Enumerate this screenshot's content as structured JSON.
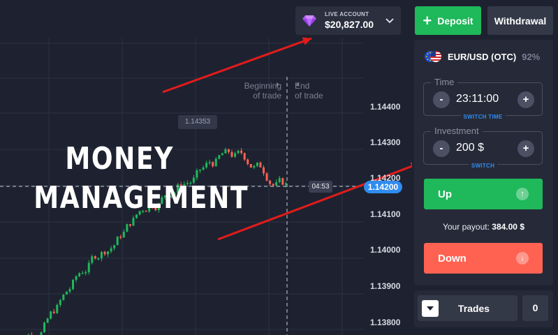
{
  "chart": {
    "price_ticks": [
      "1.14400",
      "1.14300",
      "1.14200",
      "1.14100",
      "1.14000",
      "1.13900",
      "1.13800"
    ],
    "current_price": "1.14200",
    "timer": "04:53",
    "high_label": "1.14353",
    "beginning_label_1": "Beginning",
    "beginning_label_2": "of trade",
    "end_label_1": "End",
    "end_label_2": "of trade",
    "overlay_line1": "MONEY",
    "overlay_line2": "MANAGEMENT",
    "bull_color": "#1fb85b",
    "bear_color": "#ff6251",
    "arrow_color": "#e41b1b"
  },
  "account": {
    "label": "LIVE ACCOUNT",
    "balance": "$20,827.00",
    "icon": "diamond-icon"
  },
  "header": {
    "deposit_label": "Deposit",
    "withdrawal_label": "Withdrawal"
  },
  "panel": {
    "pair": "EUR/USD (OTC)",
    "payout_pct": "92%",
    "time_legend": "Time",
    "time_value": "23:11:00",
    "switch_time": "SWITCH TIME",
    "investment_legend": "Investment",
    "investment_value": "200 $",
    "switch": "SWITCH",
    "up_label": "Up",
    "down_label": "Down",
    "payout_text": "Your payout:",
    "payout_value": "384.00 $",
    "minus": "-",
    "plus": "+"
  },
  "trades": {
    "label": "Trades",
    "count": "0"
  }
}
